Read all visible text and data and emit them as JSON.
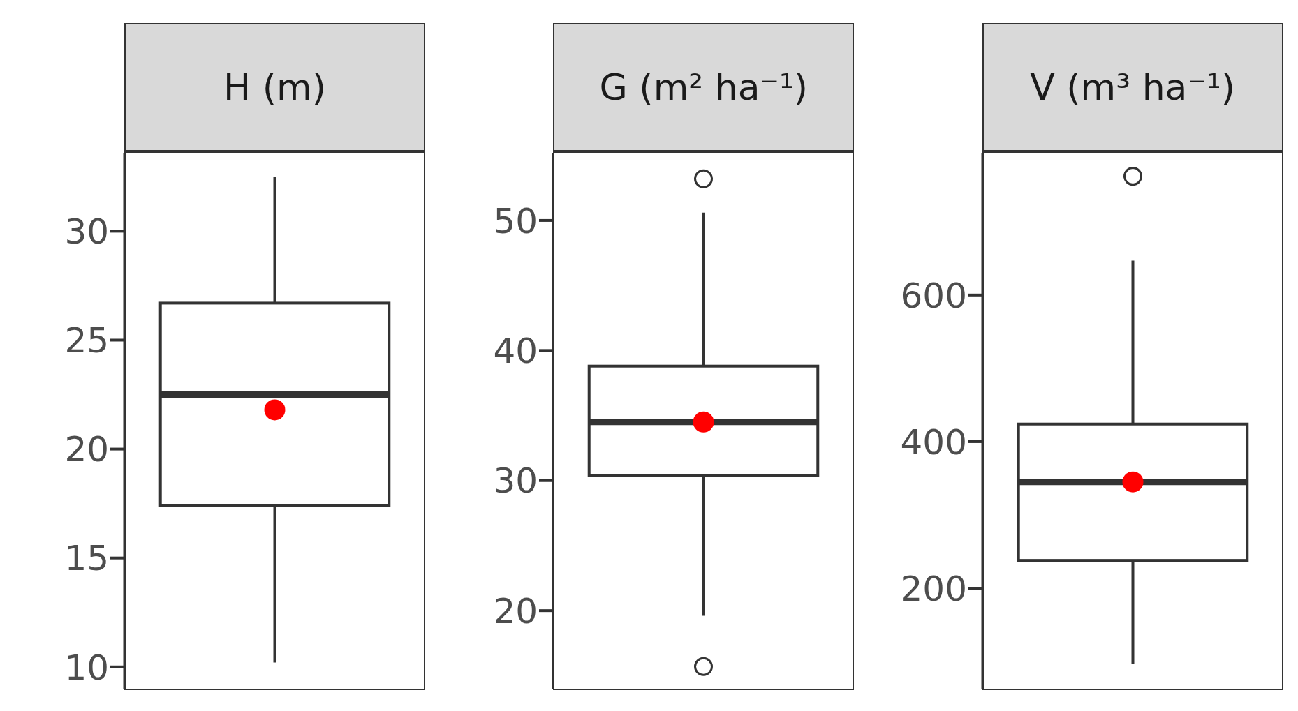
{
  "chart_data": [
    {
      "type": "box",
      "title": "H (m)",
      "categories": [
        null
      ],
      "color": "#333333",
      "tick_labels": "y",
      "ylim": [
        9,
        33.6
      ],
      "yticks": [
        10,
        15,
        20,
        25,
        30
      ],
      "boxes": [
        {
          "low": 10.2,
          "q1": 17.4,
          "median": 22.5,
          "q3": 26.7,
          "high": 32.5,
          "mean": 21.8
        }
      ]
    },
    {
      "type": "box",
      "title": "G (m² ha⁻¹)",
      "categories": [
        null
      ],
      "color": "#333333",
      "tick_labels": "y",
      "ylim": [
        14,
        55.2
      ],
      "yticks": [
        20,
        30,
        40,
        50
      ],
      "boxes": [
        {
          "low": 19.6,
          "q1": 30.4,
          "median": 34.5,
          "q3": 38.8,
          "high": 50.6,
          "mean": 34.5,
          "outliers": [
            53.2,
            15.7
          ]
        }
      ]
    },
    {
      "type": "box",
      "title": "V (m³ ha⁻¹)",
      "categories": [
        null
      ],
      "color": "#333333",
      "tick_labels": "y",
      "ylim": [
        63,
        794
      ],
      "yticks": [
        200,
        400,
        600
      ],
      "boxes": [
        {
          "low": 97,
          "q1": 238,
          "median": 345,
          "q3": 424,
          "high": 647,
          "mean": 345,
          "outliers": [
            762
          ]
        }
      ]
    }
  ]
}
